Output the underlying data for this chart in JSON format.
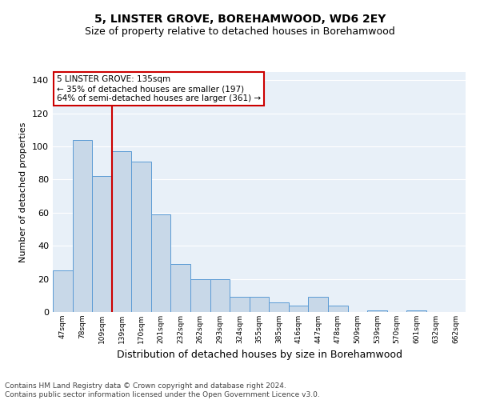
{
  "title": "5, LINSTER GROVE, BOREHAMWOOD, WD6 2EY",
  "subtitle": "Size of property relative to detached houses in Borehamwood",
  "xlabel": "Distribution of detached houses by size in Borehamwood",
  "ylabel": "Number of detached properties",
  "categories": [
    "47sqm",
    "78sqm",
    "109sqm",
    "139sqm",
    "170sqm",
    "201sqm",
    "232sqm",
    "262sqm",
    "293sqm",
    "324sqm",
    "355sqm",
    "385sqm",
    "416sqm",
    "447sqm",
    "478sqm",
    "509sqm",
    "539sqm",
    "570sqm",
    "601sqm",
    "632sqm",
    "662sqm"
  ],
  "values": [
    25,
    104,
    82,
    97,
    91,
    59,
    29,
    20,
    20,
    9,
    9,
    6,
    4,
    9,
    4,
    0,
    1,
    0,
    1,
    0,
    0
  ],
  "bar_color": "#c8d8e8",
  "bar_edge_color": "#5b9bd5",
  "vline_color": "#cc0000",
  "vline_x": 2.5,
  "annotation_text": "5 LINSTER GROVE: 135sqm\n← 35% of detached houses are smaller (197)\n64% of semi-detached houses are larger (361) →",
  "annotation_box_color": "#ffffff",
  "annotation_box_edge": "#cc0000",
  "ylim": [
    0,
    145
  ],
  "yticks": [
    0,
    20,
    40,
    60,
    80,
    100,
    120,
    140
  ],
  "background_color": "#e8f0f8",
  "grid_color": "#ffffff",
  "footer": "Contains HM Land Registry data © Crown copyright and database right 2024.\nContains public sector information licensed under the Open Government Licence v3.0.",
  "title_fontsize": 10,
  "subtitle_fontsize": 9,
  "xlabel_fontsize": 9,
  "ylabel_fontsize": 8,
  "tick_fontsize": 6.5,
  "footer_fontsize": 6.5,
  "ann_fontsize": 7.5
}
